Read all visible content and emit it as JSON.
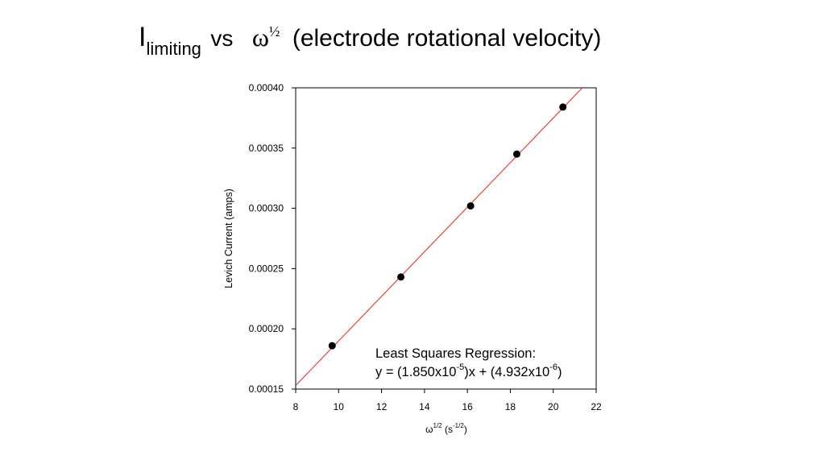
{
  "title": {
    "main": "I",
    "sub": "limiting",
    "vs": "vs",
    "omega": "ω",
    "half": "½",
    "rest": "(electrode rotational velocity)"
  },
  "chart_data": {
    "type": "scatter",
    "ylabel": "Levich Current (amps)",
    "xlabel_base": "ω",
    "xlabel_sup": "1/2",
    "xlabel_unit_open": " (s",
    "xlabel_unit_sup": "-1/2",
    "xlabel_unit_close": ")",
    "xlim": [
      8,
      22
    ],
    "ylim": [
      0.00015,
      0.0004
    ],
    "x_ticks": [
      8,
      10,
      12,
      14,
      16,
      18,
      20,
      22
    ],
    "y_ticks": [
      "0.00015",
      "0.00020",
      "0.00025",
      "0.00030",
      "0.00035",
      "0.00040"
    ],
    "points": [
      {
        "x": 9.7,
        "y": 0.000186
      },
      {
        "x": 12.9,
        "y": 0.000243
      },
      {
        "x": 16.15,
        "y": 0.000302
      },
      {
        "x": 18.3,
        "y": 0.000345
      },
      {
        "x": 20.45,
        "y": 0.000384
      }
    ],
    "fit": {
      "slope": 1.85e-05,
      "intercept": 4.932e-06
    },
    "series_colors": {
      "points": "#000000",
      "fit": "#e8413a"
    },
    "annotation": {
      "line1": "Least Squares Regression:",
      "eq_start": "y = (1.850x10",
      "eq_exp1": "-5",
      "eq_mid": ")x + (4.932x10",
      "eq_exp2": "-6",
      "eq_end": ")"
    },
    "grid": false
  }
}
